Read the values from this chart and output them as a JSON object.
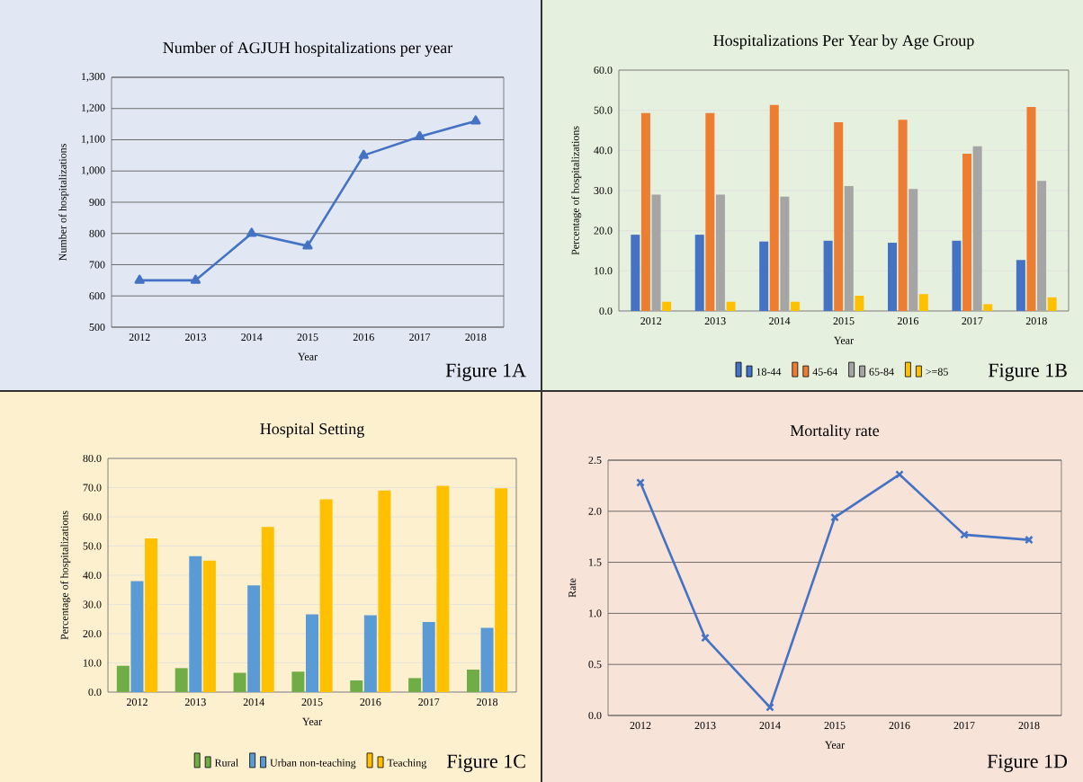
{
  "chart_data": [
    {
      "type": "line",
      "title": "Number of AGJUH hospitalizations per year",
      "xlabel": "Year",
      "ylabel": "Number of hospitalizations",
      "categories": [
        "2012",
        "2013",
        "2014",
        "2015",
        "2016",
        "2017",
        "2018"
      ],
      "series": [
        {
          "color": "#4472c4",
          "values": [
            650,
            650,
            800,
            760,
            1050,
            1110,
            1160
          ]
        }
      ],
      "ylim": [
        500,
        1300
      ],
      "yticks": [
        500,
        600,
        700,
        800,
        900,
        {
          "value": 1000,
          "label": "1,000"
        },
        {
          "value": 1100,
          "label": "1,100"
        },
        {
          "value": 1200,
          "label": "1,200"
        },
        {
          "value": 1300,
          "label": "1,300"
        }
      ],
      "grid": "y",
      "marker": "triangle",
      "annotations": [
        "Figure 1A"
      ]
    },
    {
      "type": "bar",
      "title": "Hospitalizations Per Year by Age Group",
      "xlabel": "Year",
      "ylabel": "Percentage of hospitalizations",
      "categories": [
        "2012",
        "2013",
        "2014",
        "2015",
        "2016",
        "2017",
        "2018"
      ],
      "series": [
        {
          "name": "18-44",
          "color": "#4472c4",
          "values": [
            19.0,
            19.0,
            17.3,
            17.5,
            17.0,
            17.5,
            12.7
          ]
        },
        {
          "name": "45-64",
          "color": "#ed7d31",
          "values": [
            49.3,
            49.3,
            51.3,
            47.0,
            47.6,
            39.2,
            50.8
          ]
        },
        {
          "name": "65-84",
          "color": "#a5a5a5",
          "values": [
            29.0,
            29.0,
            28.5,
            31.1,
            30.4,
            41.0,
            32.4
          ]
        },
        {
          "name": ">=85",
          "color": "#ffc000",
          "values": [
            2.3,
            2.3,
            2.3,
            3.8,
            4.2,
            1.7,
            3.4
          ]
        }
      ],
      "ylim": [
        0,
        60
      ],
      "yticks": [
        {
          "value": 0,
          "label": "0.0"
        },
        {
          "value": 10,
          "label": "10.0"
        },
        {
          "value": 20,
          "label": "20.0"
        },
        {
          "value": 30,
          "label": "30.0"
        },
        {
          "value": 40,
          "label": "40.0"
        },
        {
          "value": 50,
          "label": "50.0"
        },
        {
          "value": 60,
          "label": "60.0"
        }
      ],
      "grid": "y",
      "legend": "bottom",
      "annotations": [
        "Figure 1B"
      ]
    },
    {
      "type": "bar",
      "title": "Hospital Setting",
      "xlabel": "Year",
      "ylabel": "Percentage of hospitalizations",
      "categories": [
        "2012",
        "2013",
        "2014",
        "2015",
        "2016",
        "2017",
        "2018"
      ],
      "series": [
        {
          "name": "Rural",
          "color": "#70ad47",
          "values": [
            9.0,
            8.2,
            6.6,
            7.0,
            4.0,
            4.8,
            7.7
          ]
        },
        {
          "name": "Urban non-teaching",
          "color": "#5b9bd5",
          "values": [
            38.0,
            46.5,
            36.5,
            26.6,
            26.3,
            24.0,
            22.0
          ]
        },
        {
          "name": "Teaching",
          "color": "#ffc000",
          "values": [
            52.6,
            45.0,
            56.5,
            66.0,
            69.0,
            70.6,
            69.8
          ]
        }
      ],
      "ylim": [
        0,
        80
      ],
      "yticks": [
        {
          "value": 0,
          "label": "0.0"
        },
        {
          "value": 10,
          "label": "10.0"
        },
        {
          "value": 20,
          "label": "20.0"
        },
        {
          "value": 30,
          "label": "30.0"
        },
        {
          "value": 40,
          "label": "40.0"
        },
        {
          "value": 50,
          "label": "50.0"
        },
        {
          "value": 60,
          "label": "60.0"
        },
        {
          "value": 70,
          "label": "70.0"
        },
        {
          "value": 80,
          "label": "80.0"
        }
      ],
      "grid": "y",
      "legend": "bottom",
      "annotations": [
        "Figure 1C"
      ]
    },
    {
      "type": "line",
      "title": "Mortality rate",
      "xlabel": "Year",
      "ylabel": "Rate",
      "categories": [
        "2012",
        "2013",
        "2014",
        "2015",
        "2016",
        "2017",
        "2018"
      ],
      "series": [
        {
          "color": "#4472c4",
          "values": [
            2.28,
            0.76,
            0.08,
            1.94,
            2.36,
            1.77,
            1.72
          ]
        }
      ],
      "ylim": [
        0,
        2.5
      ],
      "yticks": [
        {
          "value": 0,
          "label": "0.0"
        },
        {
          "value": 0.5,
          "label": "0.5"
        },
        {
          "value": 1,
          "label": "1.0"
        },
        {
          "value": 1.5,
          "label": "1.5"
        },
        {
          "value": 2,
          "label": "2.0"
        },
        {
          "value": 2.5,
          "label": "2.5"
        }
      ],
      "grid": "y",
      "marker": "cross",
      "annotations": [
        "Figure 1D"
      ]
    }
  ]
}
